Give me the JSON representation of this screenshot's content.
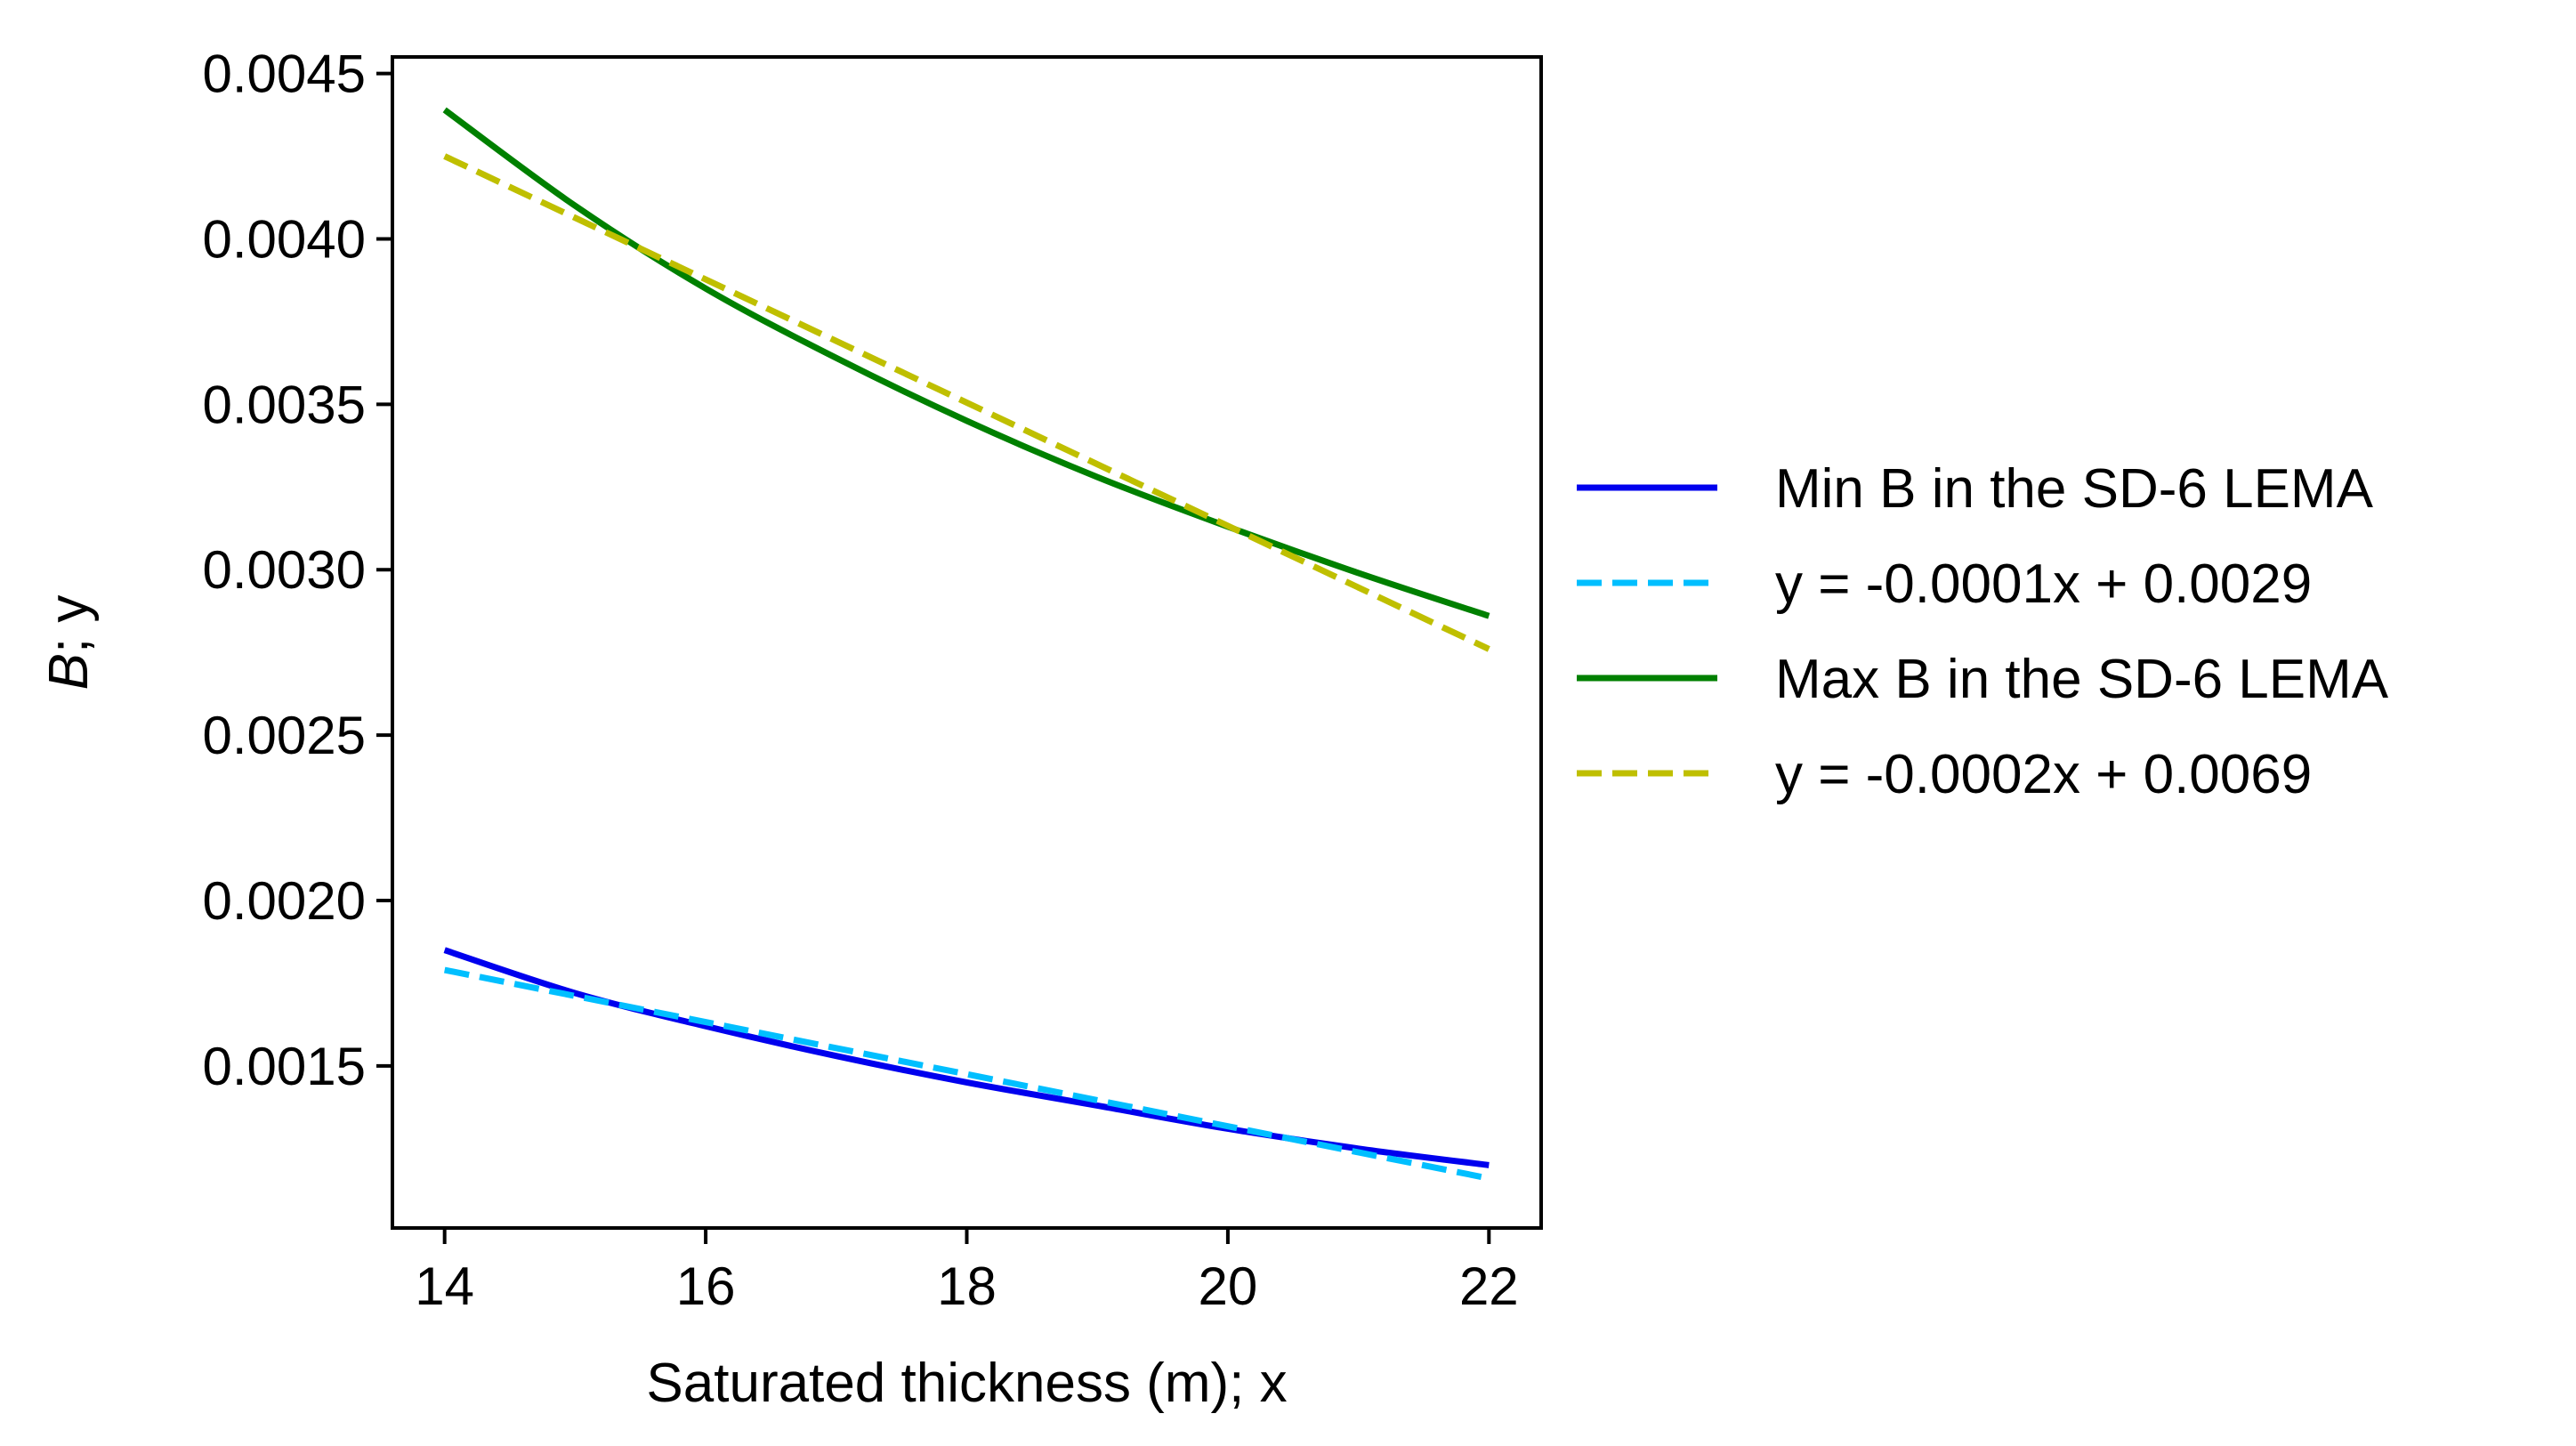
{
  "chart_data": {
    "type": "line",
    "title": "",
    "xlabel": "Saturated thickness (m); x",
    "ylabel_italic": "B",
    "ylabel_rest": "; y",
    "xlim": [
      13.6,
      22.4
    ],
    "ylim": [
      0.00101,
      0.00455
    ],
    "xticks": [
      14,
      16,
      18,
      20,
      22
    ],
    "xtick_labels": [
      "14",
      "16",
      "18",
      "20",
      "22"
    ],
    "yticks": [
      0.0015,
      0.002,
      0.0025,
      0.003,
      0.0035,
      0.004,
      0.0045
    ],
    "ytick_labels": [
      "0.0015",
      "0.0020",
      "0.0025",
      "0.0030",
      "0.0035",
      "0.0040",
      "0.0045"
    ],
    "grid": false,
    "legend_position": "outside-right",
    "series": [
      {
        "name": "Min B in the SD-6 LEMA",
        "color": "#0000ee",
        "dash": "solid",
        "x": [
          14,
          15,
          16,
          17,
          18,
          19,
          20,
          21,
          22
        ],
        "y": [
          0.00185,
          0.00172,
          0.00162,
          0.00153,
          0.00145,
          0.00138,
          0.00131,
          0.00125,
          0.0012
        ]
      },
      {
        "name": "y = -0.0001x + 0.0029",
        "color": "#00bfff",
        "dash": "dashed",
        "x": [
          14,
          22
        ],
        "y": [
          0.00179,
          0.00116
        ]
      },
      {
        "name": "Max B in the SD-6 LEMA",
        "color": "#008000",
        "dash": "solid",
        "x": [
          14,
          15,
          16,
          17,
          18,
          19,
          20,
          21,
          22
        ],
        "y": [
          0.00439,
          0.0041,
          0.00385,
          0.00364,
          0.00345,
          0.00328,
          0.00313,
          0.00299,
          0.00286
        ]
      },
      {
        "name": "y = -0.0002x + 0.0069",
        "color": "#bfbf00",
        "dash": "dashed",
        "x": [
          14,
          22
        ],
        "y": [
          0.00425,
          0.00276
        ]
      }
    ]
  }
}
